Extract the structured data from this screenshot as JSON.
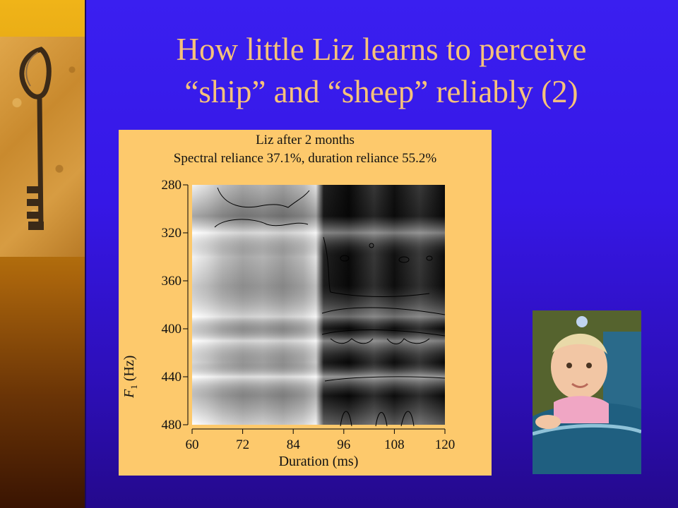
{
  "slide": {
    "title_line1": "How little Liz learns to perceive",
    "title_line2": "“ship” and “sheep” reliably (2)"
  },
  "figure": {
    "title_line1": "Liz after 2 months",
    "title_line2": "Spectral reliance 37.1%, duration reliance 55.2%",
    "ylabel_italic": "F",
    "ylabel_sub": "1",
    "ylabel_rest": " (Hz)",
    "xlabel": "Duration (ms)",
    "x_ticks": [
      "60",
      "72",
      "84",
      "96",
      "108",
      "120"
    ],
    "y_ticks": [
      "280",
      "320",
      "360",
      "400",
      "440",
      "480"
    ]
  },
  "chart_data": {
    "type": "heatmap",
    "title": "Liz after 2 months",
    "subtitle": "Spectral reliance 37.1%, duration reliance 55.2%",
    "xlabel": "Duration (ms)",
    "ylabel": "F1 (Hz)",
    "xlim": [
      60,
      120
    ],
    "ylim": [
      280,
      480
    ],
    "y_reversed": true,
    "x": [
      60,
      72,
      84,
      96,
      108,
      120
    ],
    "y": [
      280,
      320,
      360,
      400,
      440,
      480
    ],
    "colors": {
      "low": "#ffffff",
      "high": "#000000"
    }
  },
  "decor": {
    "left_image": "antique-key-icon",
    "right_image": "baby-photo"
  }
}
